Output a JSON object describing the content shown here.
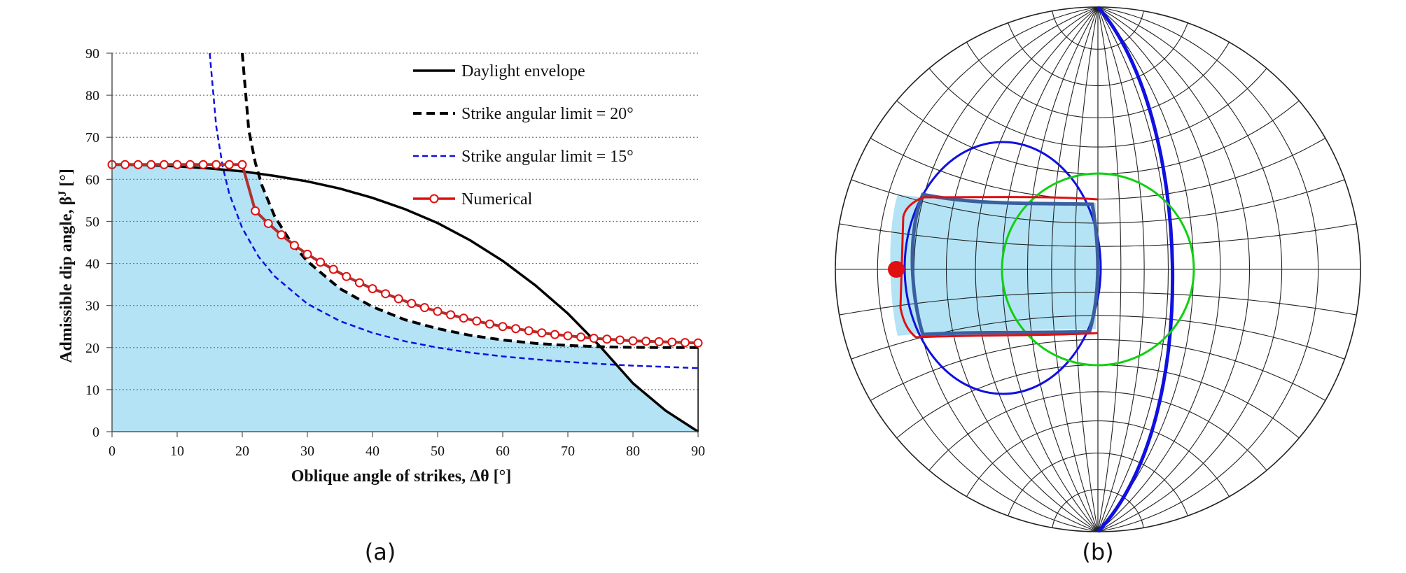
{
  "panel_captions": [
    "(a)",
    "(b)"
  ],
  "colors": {
    "fill": "#b3e3f5",
    "daylight": "#000000",
    "strike20": "#000000",
    "strike15": "#1010e0",
    "numerical": "#e01010",
    "numerical_inner": "#b03030",
    "stereonet_grid": "#222222",
    "stereonet_blue": "#1010e0",
    "stereonet_green": "#10d010",
    "stereonet_fill": "#b3e3f5",
    "stereonet_region_edge": "#3a5fa0"
  },
  "chart_data": [
    {
      "type": "line",
      "xlabel": "Oblique angle of strikes, Δθ [°]",
      "ylabel": "Admissible dip angle, β",
      "ylabel_sup": "J",
      "ylabel_unit": " [°]",
      "xlim": [
        0,
        90
      ],
      "ylim": [
        0,
        90
      ],
      "xticks": [
        0,
        10,
        20,
        30,
        40,
        50,
        60,
        70,
        80,
        90
      ],
      "yticks": [
        0,
        10,
        20,
        30,
        40,
        50,
        60,
        70,
        80,
        90
      ],
      "grid": "horizontal dotted",
      "legend_position": "top-right",
      "shaded_region": "under min(daylight envelope, strike angular limit = 20°)",
      "series": [
        {
          "name": "Daylight envelope",
          "style": "solid",
          "x": [
            0,
            5,
            10,
            15,
            20,
            25,
            30,
            35,
            40,
            45,
            50,
            55,
            60,
            65,
            70,
            75,
            80,
            85,
            90
          ],
          "y": [
            63.5,
            63.4,
            63.1,
            62.6,
            61.9,
            60.8,
            59.5,
            57.8,
            55.6,
            52.9,
            49.6,
            45.5,
            40.6,
            34.8,
            28.1,
            20.2,
            11.5,
            5.0,
            0
          ]
        },
        {
          "name": "Strike angular limit = 20°",
          "style": "dashed",
          "x": [
            20.0,
            21,
            22,
            23,
            25,
            27.5,
            30,
            35,
            40,
            45,
            50,
            55,
            60,
            65,
            70,
            75,
            80,
            85,
            90
          ],
          "y": [
            90,
            71.7,
            64.0,
            58.6,
            51.1,
            45.0,
            40.5,
            34.0,
            29.7,
            26.6,
            24.5,
            22.9,
            21.8,
            21.0,
            20.5,
            20.2,
            20.05,
            20.0,
            20.0
          ]
        },
        {
          "name": "Strike angular limit = 15°",
          "style": "dashed",
          "x": [
            15.0,
            16,
            17,
            18,
            20,
            22.5,
            25,
            30,
            35,
            40,
            45,
            50,
            55,
            60,
            65,
            70,
            75,
            80,
            85,
            90
          ],
          "y": [
            90,
            72.6,
            63.0,
            56.6,
            48.4,
            41.6,
            36.9,
            30.4,
            26.3,
            23.5,
            21.5,
            20.0,
            18.8,
            17.9,
            17.2,
            16.6,
            16.1,
            15.7,
            15.4,
            15.1
          ]
        },
        {
          "name": "Numerical",
          "style": "solid-markers",
          "x": [
            0,
            2,
            4,
            6,
            8,
            10,
            12,
            14,
            16,
            18,
            20,
            22,
            24,
            26,
            28,
            30,
            32,
            34,
            36,
            38,
            40,
            42,
            44,
            46,
            48,
            50,
            52,
            54,
            56,
            58,
            60,
            62,
            64,
            66,
            68,
            70,
            72,
            74,
            76,
            78,
            80,
            82,
            84,
            86,
            88,
            90
          ],
          "y": [
            63.5,
            63.5,
            63.5,
            63.5,
            63.5,
            63.5,
            63.5,
            63.5,
            63.5,
            63.5,
            63.5,
            52.5,
            49.5,
            46.8,
            44.3,
            42.2,
            40.3,
            38.6,
            36.9,
            35.4,
            34.0,
            32.8,
            31.6,
            30.5,
            29.5,
            28.6,
            27.8,
            27.0,
            26.3,
            25.6,
            25.0,
            24.5,
            24.0,
            23.5,
            23.1,
            22.8,
            22.5,
            22.2,
            22.0,
            21.8,
            21.6,
            21.5,
            21.4,
            21.3,
            21.2,
            21.1
          ]
        }
      ]
    },
    {
      "type": "stereonet",
      "description_items": [
        "equal-angle net with 10° grid",
        "blue great circle",
        "blue small circle",
        "green small circle",
        "shaded admissible region",
        "red numerical boundary",
        "red pole point"
      ]
    }
  ]
}
